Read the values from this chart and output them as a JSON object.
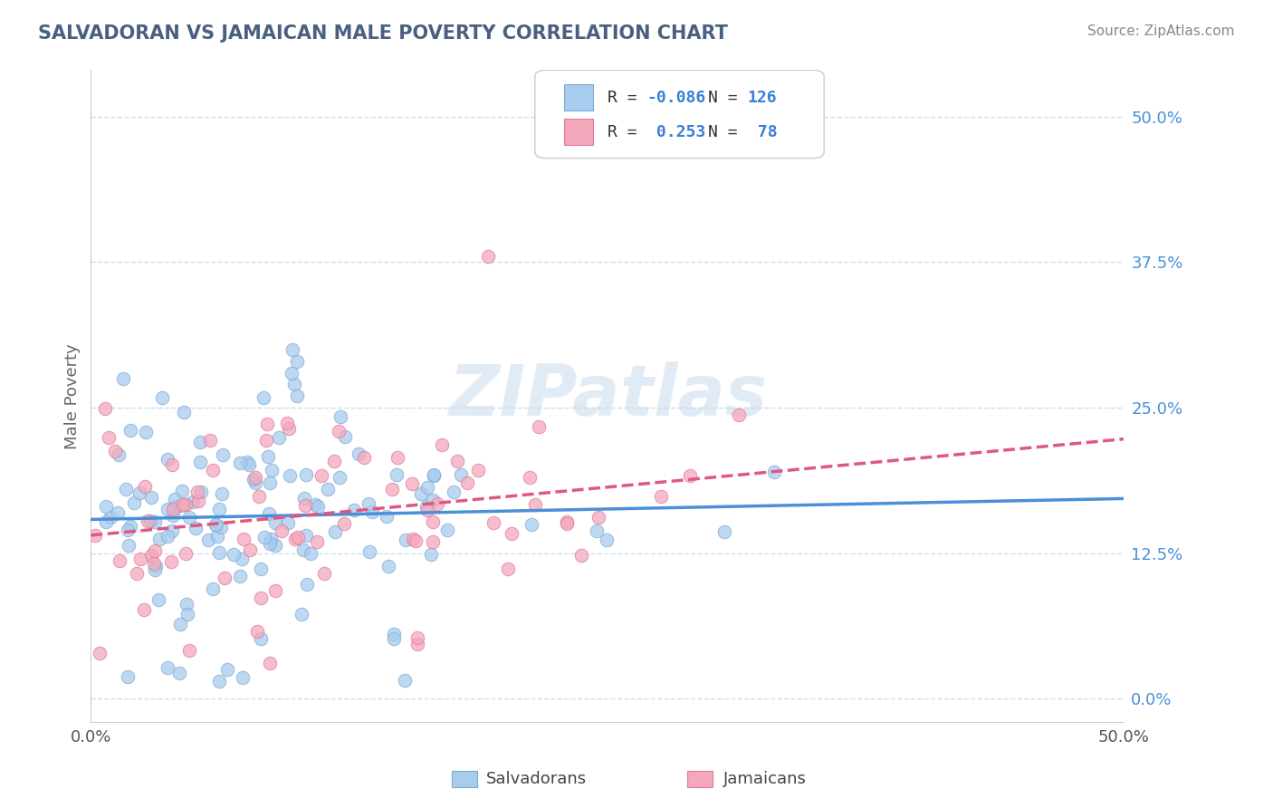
{
  "title": "SALVADORAN VS JAMAICAN MALE POVERTY CORRELATION CHART",
  "source": "Source: ZipAtlas.com",
  "ylabel": "Male Poverty",
  "right_yticks": [
    0.0,
    0.125,
    0.25,
    0.375,
    0.5
  ],
  "right_yticklabels": [
    "0.0%",
    "12.5%",
    "25.0%",
    "37.5%",
    "50.0%"
  ],
  "xlim": [
    0.0,
    0.5
  ],
  "ylim": [
    -0.02,
    0.54
  ],
  "salvadoran_color": "#a8ccee",
  "jamaican_color": "#f4a8bb",
  "salvadoran_edge": "#7aaad4",
  "jamaican_edge": "#e07898",
  "trend_blue": "#4a90d9",
  "trend_pink": "#e05880",
  "legend_text_color": "#3a7fd5",
  "legend_label_color": "#333333",
  "watermark": "ZIPatlas",
  "grid_color": "#d0dce8",
  "background_color": "#ffffff",
  "title_color": "#4a6080",
  "source_color": "#888888",
  "axis_label_color": "#666666",
  "tick_color": "#555555"
}
